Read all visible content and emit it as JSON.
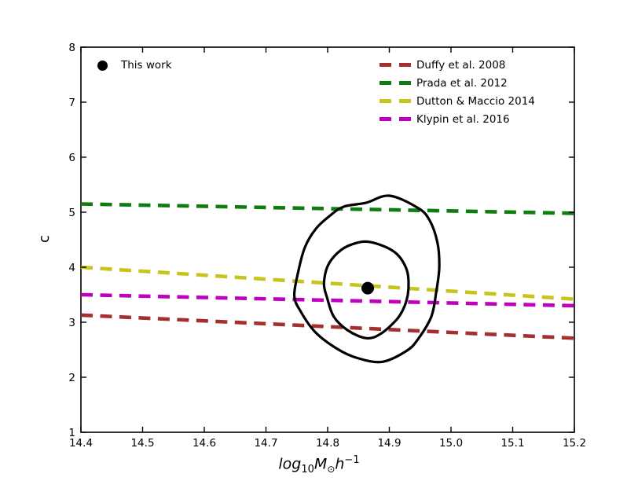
{
  "chart_data": {
    "type": "line",
    "title": "",
    "xlabel": "log10 M_sun h^-1",
    "xlabel_parts": {
      "word": "log",
      "sub": "10",
      "mass": "M",
      "sun": "⊙",
      "h": "h",
      "exp": "−1"
    },
    "ylabel": "c",
    "xlim": [
      14.4,
      15.2
    ],
    "ylim": [
      1,
      8
    ],
    "xticks": [
      14.4,
      14.5,
      14.6,
      14.7,
      14.8,
      14.9,
      15.0,
      15.1,
      15.2
    ],
    "xtick_labels": [
      "14.4",
      "14.5",
      "14.6",
      "14.7",
      "14.8",
      "14.9",
      "15.0",
      "15.1",
      "15.2"
    ],
    "yticks": [
      1,
      2,
      3,
      4,
      5,
      6,
      7,
      8
    ],
    "ytick_labels": [
      "1",
      "2",
      "3",
      "4",
      "5",
      "6",
      "7",
      "8"
    ],
    "grid": false,
    "legend_position": "upper right",
    "marker_legend_position": "upper left",
    "series": [
      {
        "name": "Duffy et al. 2008",
        "color": "#a52f2f",
        "style": "dashed",
        "x": [
          14.4,
          15.2
        ],
        "y": [
          3.13,
          2.71
        ]
      },
      {
        "name": "Prada et al. 2012",
        "color": "#0e7c0e",
        "style": "dashed",
        "x": [
          14.4,
          15.2
        ],
        "y": [
          5.15,
          4.98
        ]
      },
      {
        "name": "Dutton & Maccio 2014",
        "color": "#c6c51e",
        "style": "dashed",
        "x": [
          14.4,
          15.2
        ],
        "y": [
          4.0,
          3.42
        ]
      },
      {
        "name": "Klypin et al. 2016",
        "color": "#bf00bf",
        "style": "dashed",
        "x": [
          14.4,
          15.2
        ],
        "y": [
          3.5,
          3.3
        ]
      }
    ],
    "point": {
      "name": "This work",
      "x": 14.865,
      "y": 3.62,
      "color": "#000000"
    },
    "contours": {
      "color": "#000000",
      "outer": [
        [
          14.9,
          5.3
        ],
        [
          14.946,
          5.08
        ],
        [
          14.965,
          4.86
        ],
        [
          14.978,
          4.45
        ],
        [
          14.981,
          4.0
        ],
        [
          14.976,
          3.55
        ],
        [
          14.968,
          3.1
        ],
        [
          14.947,
          2.7
        ],
        [
          14.928,
          2.48
        ],
        [
          14.888,
          2.28
        ],
        [
          14.848,
          2.35
        ],
        [
          14.815,
          2.52
        ],
        [
          14.78,
          2.82
        ],
        [
          14.756,
          3.2
        ],
        [
          14.746,
          3.48
        ],
        [
          14.752,
          3.9
        ],
        [
          14.763,
          4.36
        ],
        [
          14.781,
          4.7
        ],
        [
          14.803,
          4.93
        ],
        [
          14.826,
          5.1
        ],
        [
          14.862,
          5.17
        ]
      ],
      "inner": [
        [
          14.868,
          4.46
        ],
        [
          14.908,
          4.28
        ],
        [
          14.928,
          3.96
        ],
        [
          14.931,
          3.6
        ],
        [
          14.925,
          3.3
        ],
        [
          14.912,
          3.05
        ],
        [
          14.886,
          2.79
        ],
        [
          14.863,
          2.71
        ],
        [
          14.833,
          2.85
        ],
        [
          14.81,
          3.1
        ],
        [
          14.799,
          3.45
        ],
        [
          14.794,
          3.7
        ],
        [
          14.8,
          4.02
        ],
        [
          14.816,
          4.26
        ],
        [
          14.838,
          4.41
        ]
      ]
    },
    "axis_color": "#000000",
    "background_color": "#ffffff"
  }
}
